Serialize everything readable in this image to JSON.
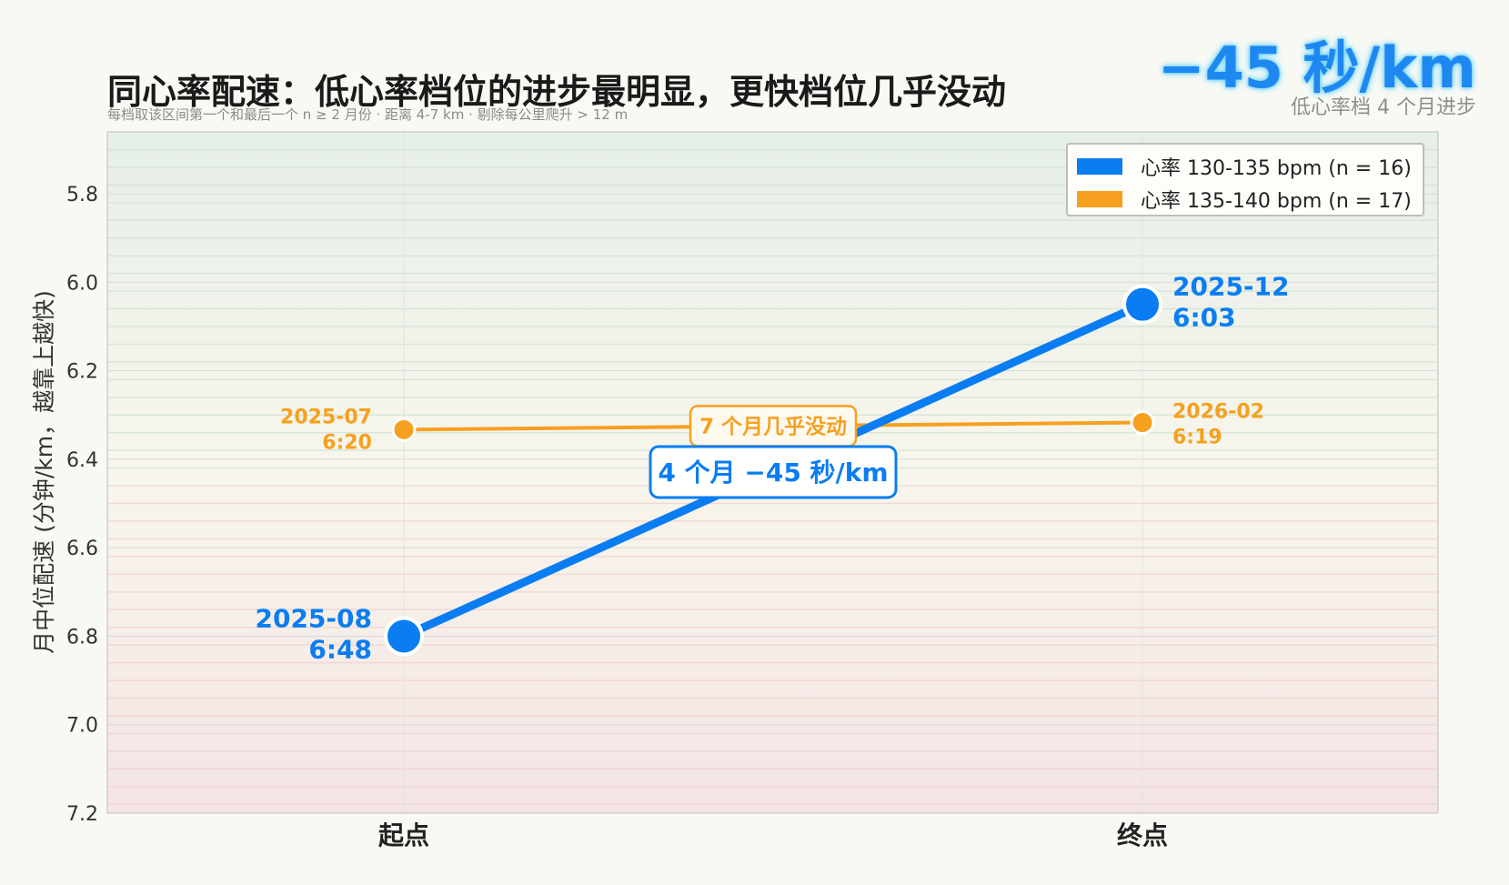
{
  "header": {
    "title": "同心率配速：低心率档位的进步最明显，更快档位几乎没动",
    "subtitle": "每档取该区间第一个和最后一个 n ≥ 2 月份 · 距离 4-7 km · 剔除每公里爬升 > 12 m",
    "headline": "−45 秒/km",
    "headline_sub": "低心率档 4 个月进步"
  },
  "legend": {
    "items": [
      {
        "label": "心率 130-135 bpm  (n = 16)",
        "color": "#0a7df2"
      },
      {
        "label": "心率 135-140 bpm  (n = 17)",
        "color": "#f7a01f"
      }
    ]
  },
  "chart_data": {
    "type": "line",
    "title": "同心率配速：低心率档位的进步最明显，更快档位几乎没动",
    "ylabel": "月中位配速 (分钟/km，越靠上越快)",
    "xlabel": "",
    "categories": [
      "起点",
      "终点"
    ],
    "ylim": [
      7.2,
      5.66
    ],
    "y_inverted": true,
    "yticks": [
      5.8,
      6.0,
      6.2,
      6.4,
      6.6,
      6.8,
      7.0,
      7.2
    ],
    "ytick_labels": [
      "5.8",
      "6.0",
      "6.2",
      "6.4",
      "6.6",
      "6.8",
      "7.0",
      "7.2"
    ],
    "grid": true,
    "legend_position": "top-right",
    "series": [
      {
        "name": "心率 130-135 bpm  (n = 16)",
        "color": "#0a7df2",
        "values": [
          6.8,
          6.05
        ],
        "point_labels": [
          {
            "date": "2025-08",
            "pace": "6:48"
          },
          {
            "date": "2025-12",
            "pace": "6:03"
          }
        ]
      },
      {
        "name": "心率 135-140 bpm  (n = 17)",
        "color": "#f7a01f",
        "values": [
          6.333,
          6.317
        ],
        "point_labels": [
          {
            "date": "2025-07",
            "pace": "6:20"
          },
          {
            "date": "2026-02",
            "pace": "6:19"
          }
        ]
      }
    ],
    "annotations": [
      {
        "text": "7 个月几乎没动",
        "series": 1,
        "color": "#f7a01f"
      },
      {
        "text": "4 个月 −45 秒/km",
        "series": 0,
        "color": "#0a7df2"
      }
    ]
  }
}
